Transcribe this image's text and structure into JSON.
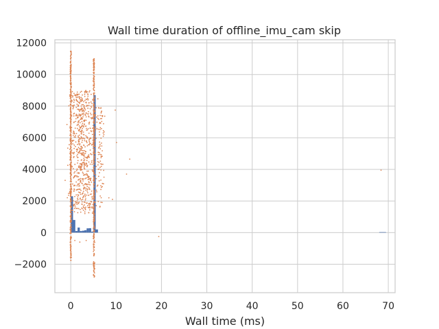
{
  "chart_data": {
    "type": "scatter",
    "title": "Wall time duration of offline_imu_cam skip",
    "xlabel": "Wall time (ms)",
    "ylabel": "",
    "xlim": [
      -3.5,
      71.5
    ],
    "ylim": [
      -3800,
      12200
    ],
    "xticks": [
      0,
      10,
      20,
      30,
      40,
      50,
      60,
      70
    ],
    "yticks": [
      -2000,
      0,
      2000,
      4000,
      6000,
      8000,
      10000,
      12000
    ],
    "xtick_labels": [
      "0",
      "10",
      "20",
      "30",
      "40",
      "50",
      "60",
      "70"
    ],
    "ytick_labels": [
      "−2000",
      "0",
      "2000",
      "4000",
      "6000",
      "8000",
      "10000",
      "12000"
    ],
    "grid": true,
    "colors": {
      "histogram": "#4c72b0",
      "scatter": "#dd8452",
      "grid": "#cccccc"
    },
    "histogram": {
      "bins": [
        {
          "x0": 0.0,
          "x1": 0.5,
          "count": 2300
        },
        {
          "x0": 0.5,
          "x1": 1.0,
          "count": 800
        },
        {
          "x0": 1.0,
          "x1": 1.5,
          "count": 100
        },
        {
          "x0": 1.5,
          "x1": 2.0,
          "count": 320
        },
        {
          "x0": 2.0,
          "x1": 2.5,
          "count": 100
        },
        {
          "x0": 2.5,
          "x1": 3.0,
          "count": 120
        },
        {
          "x0": 3.0,
          "x1": 3.5,
          "count": 150
        },
        {
          "x0": 3.5,
          "x1": 4.0,
          "count": 270
        },
        {
          "x0": 4.0,
          "x1": 4.5,
          "count": 280
        },
        {
          "x0": 4.5,
          "x1": 5.0,
          "count": 60
        },
        {
          "x0": 5.0,
          "x1": 5.5,
          "count": 8700
        },
        {
          "x0": 5.5,
          "x1": 6.0,
          "count": 200
        },
        {
          "x0": 68.0,
          "x1": 69.5,
          "count": 30
        }
      ]
    },
    "scatter_clusters": [
      {
        "x_center": 0.0,
        "x_spread": 0.12,
        "y_min": -1800,
        "y_max": 11500,
        "count": 420
      },
      {
        "x_center": 5.1,
        "x_spread": 0.12,
        "y_min": -3000,
        "y_max": 11000,
        "count": 420
      },
      {
        "x_center": 2.6,
        "x_spread": 2.4,
        "y_min": 1200,
        "y_max": 9000,
        "count": 700
      },
      {
        "x_center": 6.5,
        "x_spread": 0.8,
        "y_min": 1500,
        "y_max": 8000,
        "count": 90
      }
    ],
    "scatter_points": [
      {
        "x": 9.8,
        "y": 7750
      },
      {
        "x": 10.1,
        "y": 5700
      },
      {
        "x": 12.3,
        "y": 3700
      },
      {
        "x": 13.0,
        "y": 4650
      },
      {
        "x": 19.4,
        "y": -250
      },
      {
        "x": 68.4,
        "y": 3950
      },
      {
        "x": 8.4,
        "y": 2200
      },
      {
        "x": 9.2,
        "y": 2100
      },
      {
        "x": 7.3,
        "y": 6200
      },
      {
        "x": 0.9,
        "y": -500
      },
      {
        "x": 2.0,
        "y": -600
      },
      {
        "x": 3.4,
        "y": -500
      }
    ]
  }
}
